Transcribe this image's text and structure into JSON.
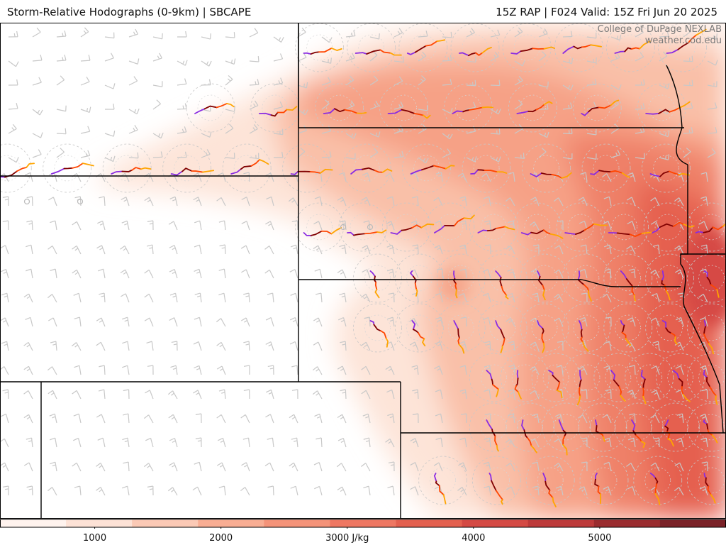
{
  "header": {
    "title_left": "Storm-Relative Hodographs (0-9km) | SBCAPE",
    "title_right": "15Z RAP | F024 Valid: 15Z Fri Jun 20 2025"
  },
  "credits": {
    "line1": "College of DuPage NEXLAB",
    "line2": "weather.cod.edu"
  },
  "colorbar": {
    "ticks": [
      {
        "value": 1000,
        "label": "1000"
      },
      {
        "value": 2000,
        "label": "2000"
      },
      {
        "value": 3000,
        "label": "3000 J/kg"
      },
      {
        "value": 4000,
        "label": "4000"
      },
      {
        "value": 5000,
        "label": "5000"
      }
    ],
    "range": [
      250,
      6000
    ],
    "colors": [
      "#fff3ee",
      "#fde2d6",
      "#fbc9b5",
      "#f8ad93",
      "#f49379",
      "#ee7762",
      "#e3604f",
      "#d44a44",
      "#bd3a3a",
      "#9a2c2f",
      "#7a2228"
    ]
  },
  "colors": {
    "hodo_segments": [
      "#8a2be2",
      "#800000",
      "#ff4500",
      "#ffa500"
    ],
    "borders": "#000000",
    "barbs": "#c8c8c8"
  },
  "map": {
    "hodograph_rows": [
      {
        "count": 8,
        "span_start": 0.44,
        "span_end": 0.94,
        "row": 0
      },
      {
        "count": 9,
        "span_start": 0.29,
        "span_end": 1.0,
        "row": 1
      },
      {
        "count": 13,
        "span_start": 0.01,
        "span_end": 1.0,
        "row": 2
      },
      {
        "count": 10,
        "span_start": 0.44,
        "span_end": 0.98,
        "row": 3
      },
      {
        "count": 9,
        "span_start": 0.52,
        "span_end": 0.98,
        "row": 4
      },
      {
        "count": 9,
        "span_start": 0.52,
        "span_end": 0.98,
        "row": 5
      },
      {
        "count": 8,
        "span_start": 0.68,
        "span_end": 0.98,
        "row": 6
      },
      {
        "count": 7,
        "span_start": 0.68,
        "span_end": 0.98,
        "row": 7
      },
      {
        "count": 6,
        "span_start": 0.61,
        "span_end": 0.98,
        "row": 8
      }
    ]
  }
}
